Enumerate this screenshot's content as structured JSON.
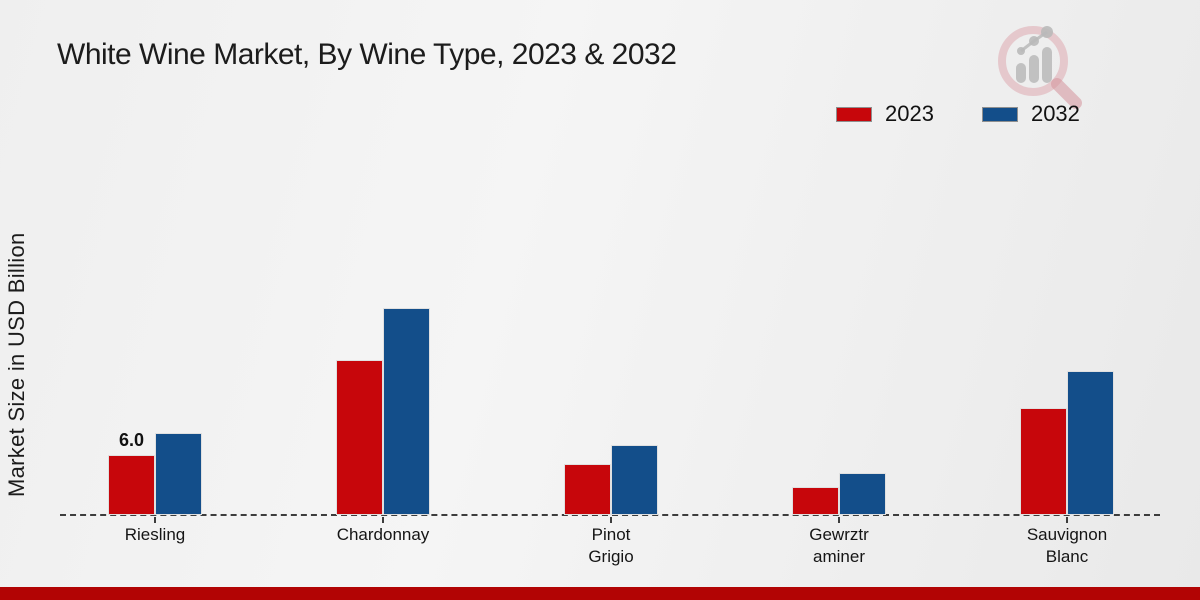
{
  "title": "White Wine Market, By Wine Type, 2023 & 2032",
  "y_axis_label": "Market Size in USD Billion",
  "legend": {
    "items": [
      {
        "label": "2023",
        "color": "#c7060b"
      },
      {
        "label": "2032",
        "color": "#134e8a"
      }
    ]
  },
  "colors": {
    "bar_2023": "#c7060b",
    "bar_2032": "#134e8a",
    "footer_band": "#b20404",
    "baseline": "#3d3d3d",
    "background": "#efefef",
    "text": "#1c1c1c"
  },
  "watermark_icon": "magnifier-bar-chart-logo",
  "chart_data": {
    "type": "bar",
    "title": "White Wine Market, By Wine Type, 2023 & 2032",
    "categories": [
      "Riesling",
      "Chardonnay",
      "Pinot Grigio",
      "Gewrztraminer",
      "Sauvignon Blanc"
    ],
    "category_label_lines": [
      [
        "Riesling"
      ],
      [
        "Chardonnay"
      ],
      [
        "Pinot",
        "Grigio"
      ],
      [
        "Gewrztr",
        "aminer"
      ],
      [
        "Sauvignon",
        "Blanc"
      ]
    ],
    "series": [
      {
        "name": "2023",
        "color": "#c7060b",
        "values": [
          6.0,
          15.5,
          5.1,
          2.8,
          10.7
        ]
      },
      {
        "name": "2032",
        "color": "#134e8a",
        "values": [
          8.2,
          20.7,
          7.0,
          4.2,
          14.4
        ]
      }
    ],
    "data_labels": [
      {
        "category_index": 0,
        "series_index": 0,
        "text": "6.0"
      }
    ],
    "xlabel": "",
    "ylabel": "Market Size in USD Billion",
    "ylim": [
      0,
      42
    ],
    "grid": false,
    "baseline_style": "dashed",
    "legend_position": "top-right"
  }
}
